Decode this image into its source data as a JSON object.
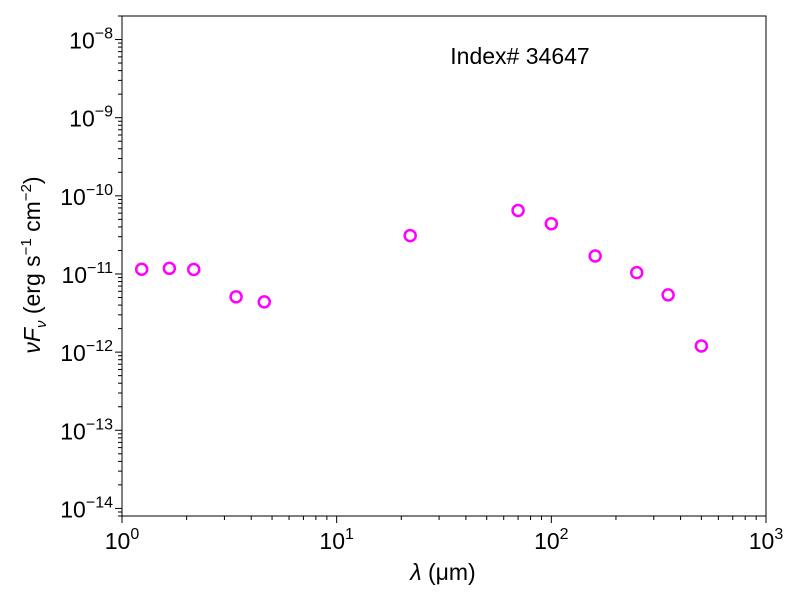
{
  "chart_data": {
    "type": "scatter",
    "annotation": "Index# 34647",
    "xlabel": {
      "sym": "λ",
      "unit": " (μm)"
    },
    "ylabel": {
      "nu": "ν",
      "F": "F",
      "sub": "ν",
      "rest1": " (erg s",
      "exp1": "−1",
      "rest2": " cm",
      "exp2": "−2",
      "rest3": ")"
    },
    "xscale": "log",
    "yscale": "log",
    "xlim": [
      1,
      1000
    ],
    "ylim": [
      8e-15,
      2e-08
    ],
    "xticks": [
      {
        "value": 1,
        "base": "10",
        "exp": "0"
      },
      {
        "value": 10,
        "base": "10",
        "exp": "1"
      },
      {
        "value": 100,
        "base": "10",
        "exp": "2"
      },
      {
        "value": 1000,
        "base": "10",
        "exp": "3"
      }
    ],
    "yticks": [
      {
        "value": 1e-14,
        "base": "10",
        "exp": "−14"
      },
      {
        "value": 1e-13,
        "base": "10",
        "exp": "−13"
      },
      {
        "value": 1e-12,
        "base": "10",
        "exp": "−12"
      },
      {
        "value": 1e-11,
        "base": "10",
        "exp": "−11"
      },
      {
        "value": 1e-10,
        "base": "10",
        "exp": "−10"
      },
      {
        "value": 1e-09,
        "base": "10",
        "exp": "−9"
      },
      {
        "value": 1e-08,
        "base": "10",
        "exp": "−8"
      }
    ],
    "marker_color": "#ff00ff",
    "points": [
      {
        "x": 1.235,
        "y": 1.15e-11
      },
      {
        "x": 1.662,
        "y": 1.18e-11
      },
      {
        "x": 2.159,
        "y": 1.14e-11
      },
      {
        "x": 3.4,
        "y": 5.1e-12
      },
      {
        "x": 4.6,
        "y": 4.4e-12
      },
      {
        "x": 22,
        "y": 3.1e-11
      },
      {
        "x": 70,
        "y": 6.5e-11
      },
      {
        "x": 100,
        "y": 4.4e-11
      },
      {
        "x": 160,
        "y": 1.7e-11
      },
      {
        "x": 250,
        "y": 1.04e-11
      },
      {
        "x": 350,
        "y": 5.4e-12
      },
      {
        "x": 500,
        "y": 1.2e-12
      }
    ]
  }
}
